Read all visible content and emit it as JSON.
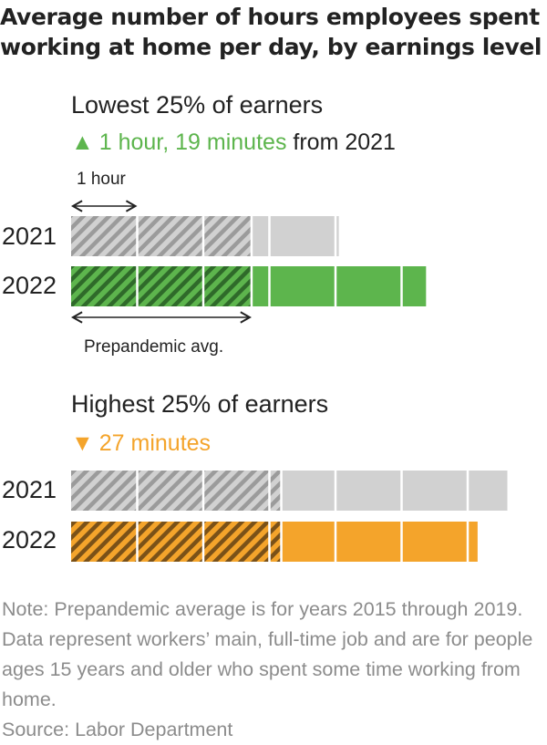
{
  "chart_data": {
    "type": "bar",
    "title": "Average number of hours employees spent working at home per day, by earnings level",
    "unit": "hours",
    "scale_label": "1 hour",
    "prepandemic_label": "Prepandemic avg.",
    "groups": [
      {
        "name": "Lowest 25% of earners",
        "change_amount": "1 hour, 19 minutes",
        "change_suffix": " from 2021",
        "change_direction": "up",
        "color": "#5db54d",
        "prepandemic_hours": 2.73,
        "series": [
          {
            "name": "2021",
            "value": 4.05,
            "color": "#d1d1d1"
          },
          {
            "name": "2022",
            "value": 5.37,
            "color": "#5db54d"
          }
        ]
      },
      {
        "name": "Highest 25% of earners",
        "change_amount": "27 minutes",
        "change_suffix": "",
        "change_direction": "down",
        "color": "#f4a42b",
        "prepandemic_hours": 3.18,
        "series": [
          {
            "name": "2021",
            "value": 6.6,
            "color": "#d1d1d1"
          },
          {
            "name": "2022",
            "value": 6.15,
            "color": "#f4a42b"
          }
        ]
      }
    ]
  },
  "note": "Note: Prepandemic average is for years 2015 through 2019. Data represent workers’ main, full-time job and are for people ages 15 years and older who spent some time working from home.",
  "source": "Source: Labor Department",
  "arrows": {
    "up": "▲",
    "down": "▼"
  }
}
